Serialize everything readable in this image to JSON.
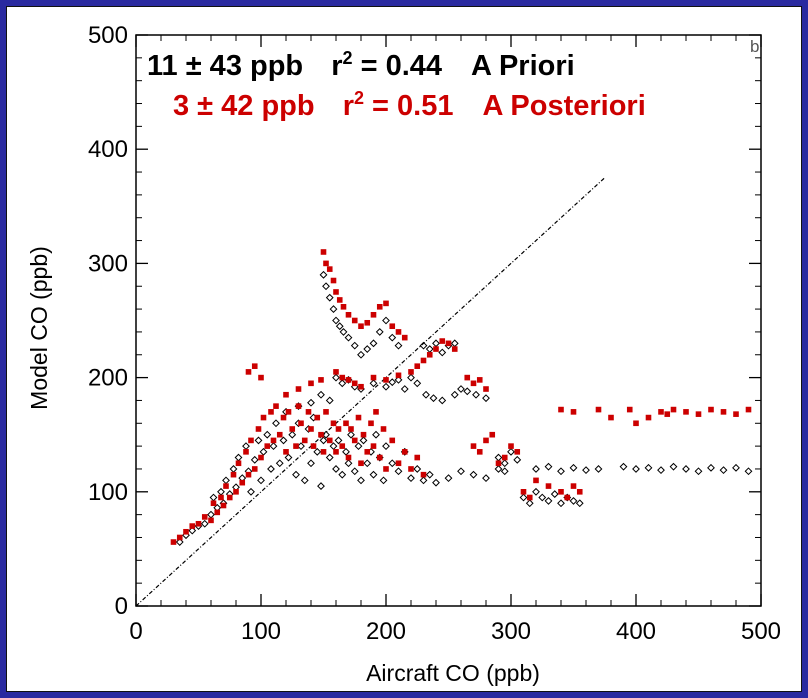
{
  "colors": {
    "background_border": "#2a2aa0",
    "apriori": "#000000",
    "aposteriori": "#cc0000"
  },
  "chart_data": {
    "type": "scatter",
    "title": "",
    "xlabel": "Aircraft CO (ppb)",
    "ylabel": "Model CO (ppb)",
    "xlim": [
      0,
      500
    ],
    "ylim": [
      0,
      500
    ],
    "xticks": [
      "0",
      "100",
      "200",
      "300",
      "400",
      "500"
    ],
    "yticks": [
      "0",
      "100",
      "200",
      "300",
      "400",
      "500"
    ],
    "corner_mark": "b",
    "one_to_one_line": {
      "x": [
        0,
        375
      ],
      "y": [
        0,
        375
      ]
    },
    "annotations": [
      {
        "text_stat": "11 ± 43 ppb",
        "text_r": "r",
        "text_sup": "2",
        "text_val": " = 0.44",
        "text_label": "A Priori",
        "color": "#000000"
      },
      {
        "text_stat": "3 ± 42 ppb",
        "text_r": "r",
        "text_sup": "2",
        "text_val": " = 0.51",
        "text_label": "A Posteriori",
        "color": "#cc0000"
      }
    ],
    "series": [
      {
        "name": "A Priori",
        "marker": "open-diamond",
        "color": "#000000",
        "points": [
          [
            35,
            56
          ],
          [
            40,
            62
          ],
          [
            45,
            66
          ],
          [
            50,
            70
          ],
          [
            55,
            72
          ],
          [
            60,
            80
          ],
          [
            62,
            95
          ],
          [
            65,
            86
          ],
          [
            68,
            100
          ],
          [
            70,
            90
          ],
          [
            72,
            110
          ],
          [
            75,
            98
          ],
          [
            78,
            120
          ],
          [
            80,
            104
          ],
          [
            82,
            130
          ],
          [
            85,
            112
          ],
          [
            88,
            140
          ],
          [
            90,
            118
          ],
          [
            92,
            100
          ],
          [
            95,
            128
          ],
          [
            98,
            145
          ],
          [
            100,
            110
          ],
          [
            102,
            135
          ],
          [
            105,
            150
          ],
          [
            108,
            120
          ],
          [
            110,
            140
          ],
          [
            112,
            160
          ],
          [
            115,
            125
          ],
          [
            118,
            145
          ],
          [
            120,
            170
          ],
          [
            122,
            130
          ],
          [
            125,
            150
          ],
          [
            128,
            115
          ],
          [
            130,
            160
          ],
          [
            132,
            140
          ],
          [
            135,
            110
          ],
          [
            138,
            155
          ],
          [
            140,
            125
          ],
          [
            142,
            165
          ],
          [
            145,
            135
          ],
          [
            148,
            105
          ],
          [
            150,
            145
          ],
          [
            152,
            150
          ],
          [
            155,
            130
          ],
          [
            158,
            140
          ],
          [
            160,
            120
          ],
          [
            162,
            145
          ],
          [
            165,
            115
          ],
          [
            168,
            135
          ],
          [
            170,
            125
          ],
          [
            172,
            150
          ],
          [
            175,
            118
          ],
          [
            178,
            140
          ],
          [
            180,
            110
          ],
          [
            182,
            145
          ],
          [
            185,
            125
          ],
          [
            188,
            135
          ],
          [
            190,
            115
          ],
          [
            192,
            150
          ],
          [
            195,
            130
          ],
          [
            198,
            110
          ],
          [
            200,
            140
          ],
          [
            205,
            125
          ],
          [
            210,
            118
          ],
          [
            215,
            135
          ],
          [
            220,
            112
          ],
          [
            225,
            120
          ],
          [
            230,
            110
          ],
          [
            235,
            115
          ],
          [
            240,
            108
          ],
          [
            250,
            112
          ],
          [
            260,
            118
          ],
          [
            270,
            115
          ],
          [
            280,
            112
          ],
          [
            290,
            120
          ],
          [
            295,
            118
          ],
          [
            150,
            290
          ],
          [
            152,
            280
          ],
          [
            155,
            270
          ],
          [
            158,
            260
          ],
          [
            160,
            250
          ],
          [
            163,
            245
          ],
          [
            166,
            240
          ],
          [
            170,
            235
          ],
          [
            175,
            228
          ],
          [
            180,
            220
          ],
          [
            185,
            225
          ],
          [
            190,
            230
          ],
          [
            195,
            240
          ],
          [
            200,
            250
          ],
          [
            205,
            235
          ],
          [
            210,
            228
          ],
          [
            160,
            200
          ],
          [
            165,
            195
          ],
          [
            170,
            198
          ],
          [
            175,
            192
          ],
          [
            180,
            190
          ],
          [
            190,
            195
          ],
          [
            200,
            192
          ],
          [
            205,
            196
          ],
          [
            210,
            198
          ],
          [
            215,
            190
          ],
          [
            220,
            200
          ],
          [
            225,
            195
          ],
          [
            232,
            185
          ],
          [
            238,
            182
          ],
          [
            245,
            180
          ],
          [
            255,
            185
          ],
          [
            260,
            190
          ],
          [
            265,
            188
          ],
          [
            272,
            185
          ],
          [
            280,
            182
          ],
          [
            230,
            228
          ],
          [
            235,
            225
          ],
          [
            240,
            230
          ],
          [
            245,
            222
          ],
          [
            250,
            228
          ],
          [
            255,
            230
          ],
          [
            130,
            175
          ],
          [
            140,
            178
          ],
          [
            148,
            185
          ],
          [
            155,
            180
          ],
          [
            290,
            130
          ],
          [
            295,
            125
          ],
          [
            300,
            135
          ],
          [
            305,
            128
          ],
          [
            310,
            95
          ],
          [
            315,
            90
          ],
          [
            320,
            100
          ],
          [
            325,
            95
          ],
          [
            330,
            92
          ],
          [
            335,
            98
          ],
          [
            340,
            90
          ],
          [
            345,
            95
          ],
          [
            350,
            92
          ],
          [
            355,
            90
          ],
          [
            320,
            120
          ],
          [
            330,
            122
          ],
          [
            340,
            118
          ],
          [
            350,
            121
          ],
          [
            360,
            119
          ],
          [
            370,
            120
          ],
          [
            390,
            122
          ],
          [
            400,
            120
          ],
          [
            410,
            121
          ],
          [
            420,
            119
          ],
          [
            430,
            122
          ],
          [
            440,
            120
          ],
          [
            450,
            118
          ],
          [
            460,
            121
          ],
          [
            470,
            119
          ],
          [
            480,
            121
          ],
          [
            490,
            118
          ]
        ]
      },
      {
        "name": "A Posteriori",
        "marker": "filled-square",
        "color": "#cc0000",
        "points": [
          [
            30,
            56
          ],
          [
            35,
            60
          ],
          [
            40,
            65
          ],
          [
            45,
            70
          ],
          [
            50,
            72
          ],
          [
            55,
            78
          ],
          [
            60,
            75
          ],
          [
            62,
            90
          ],
          [
            65,
            82
          ],
          [
            68,
            95
          ],
          [
            70,
            88
          ],
          [
            72,
            105
          ],
          [
            75,
            95
          ],
          [
            78,
            115
          ],
          [
            80,
            100
          ],
          [
            82,
            125
          ],
          [
            85,
            108
          ],
          [
            88,
            135
          ],
          [
            90,
            115
          ],
          [
            92,
            145
          ],
          [
            95,
            120
          ],
          [
            98,
            155
          ],
          [
            100,
            130
          ],
          [
            102,
            165
          ],
          [
            105,
            140
          ],
          [
            108,
            170
          ],
          [
            110,
            145
          ],
          [
            112,
            175
          ],
          [
            115,
            150
          ],
          [
            118,
            165
          ],
          [
            120,
            135
          ],
          [
            122,
            170
          ],
          [
            125,
            155
          ],
          [
            128,
            140
          ],
          [
            130,
            175
          ],
          [
            132,
            160
          ],
          [
            135,
            145
          ],
          [
            138,
            170
          ],
          [
            140,
            155
          ],
          [
            142,
            140
          ],
          [
            145,
            165
          ],
          [
            148,
            150
          ],
          [
            150,
            135
          ],
          [
            152,
            170
          ],
          [
            155,
            145
          ],
          [
            158,
            160
          ],
          [
            160,
            135
          ],
          [
            162,
            155
          ],
          [
            165,
            140
          ],
          [
            168,
            160
          ],
          [
            170,
            130
          ],
          [
            172,
            155
          ],
          [
            175,
            145
          ],
          [
            178,
            165
          ],
          [
            180,
            125
          ],
          [
            182,
            150
          ],
          [
            185,
            135
          ],
          [
            188,
            160
          ],
          [
            190,
            140
          ],
          [
            192,
            170
          ],
          [
            195,
            130
          ],
          [
            198,
            155
          ],
          [
            200,
            120
          ],
          [
            205,
            145
          ],
          [
            210,
            125
          ],
          [
            215,
            135
          ],
          [
            220,
            120
          ],
          [
            225,
            130
          ],
          [
            230,
            115
          ],
          [
            150,
            310
          ],
          [
            152,
            300
          ],
          [
            155,
            295
          ],
          [
            158,
            285
          ],
          [
            160,
            275
          ],
          [
            163,
            268
          ],
          [
            166,
            262
          ],
          [
            170,
            255
          ],
          [
            175,
            250
          ],
          [
            180,
            245
          ],
          [
            185,
            248
          ],
          [
            190,
            255
          ],
          [
            195,
            262
          ],
          [
            200,
            265
          ],
          [
            205,
            245
          ],
          [
            210,
            240
          ],
          [
            215,
            235
          ],
          [
            160,
            205
          ],
          [
            165,
            200
          ],
          [
            170,
            198
          ],
          [
            175,
            195
          ],
          [
            180,
            192
          ],
          [
            190,
            200
          ],
          [
            200,
            198
          ],
          [
            210,
            202
          ],
          [
            220,
            205
          ],
          [
            225,
            210
          ],
          [
            230,
            215
          ],
          [
            235,
            220
          ],
          [
            240,
            225
          ],
          [
            245,
            232
          ],
          [
            250,
            230
          ],
          [
            255,
            225
          ],
          [
            265,
            200
          ],
          [
            270,
            195
          ],
          [
            275,
            198
          ],
          [
            280,
            190
          ],
          [
            90,
            205
          ],
          [
            95,
            210
          ],
          [
            100,
            200
          ],
          [
            120,
            185
          ],
          [
            130,
            190
          ],
          [
            140,
            195
          ],
          [
            148,
            198
          ],
          [
            270,
            140
          ],
          [
            275,
            135
          ],
          [
            280,
            145
          ],
          [
            285,
            150
          ],
          [
            290,
            125
          ],
          [
            295,
            130
          ],
          [
            300,
            140
          ],
          [
            305,
            135
          ],
          [
            310,
            100
          ],
          [
            315,
            95
          ],
          [
            320,
            110
          ],
          [
            330,
            105
          ],
          [
            340,
            100
          ],
          [
            345,
            95
          ],
          [
            350,
            105
          ],
          [
            355,
            100
          ],
          [
            340,
            172
          ],
          [
            350,
            170
          ],
          [
            370,
            172
          ],
          [
            395,
            172
          ],
          [
            410,
            165
          ],
          [
            420,
            170
          ],
          [
            425,
            168
          ],
          [
            430,
            172
          ],
          [
            440,
            170
          ],
          [
            450,
            168
          ],
          [
            460,
            172
          ],
          [
            470,
            170
          ],
          [
            480,
            168
          ],
          [
            490,
            172
          ],
          [
            380,
            165
          ],
          [
            400,
            160
          ]
        ]
      }
    ]
  }
}
